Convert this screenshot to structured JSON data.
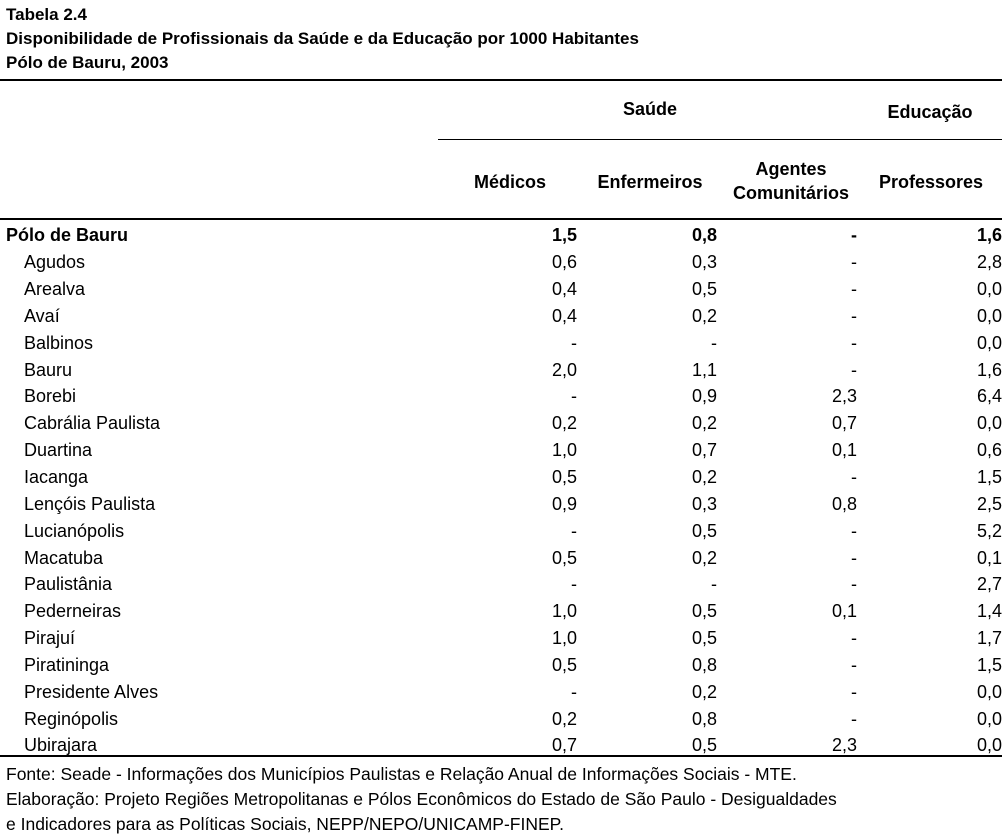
{
  "title": {
    "line1": "Tabela 2.4",
    "line2": "Disponibilidade de Profissionais da Saúde e da Educação por 1000 Habitantes",
    "line3": "Pólo de Bauru, 2003"
  },
  "headers": {
    "group_saude": "Saúde",
    "group_educacao": "Educação",
    "medicos": "Médicos",
    "enfermeiros": "Enfermeiros",
    "agentes_line1": "Agentes",
    "agentes_line2": "Comunitários",
    "professores": "Professores"
  },
  "rows": [
    {
      "name": "Pólo de Bauru",
      "medicos": "1,5",
      "enfermeiros": "0,8",
      "agentes": "-",
      "professores": "1,6",
      "total": true
    },
    {
      "name": "Agudos",
      "medicos": "0,6",
      "enfermeiros": "0,3",
      "agentes": "-",
      "professores": "2,8"
    },
    {
      "name": "Arealva",
      "medicos": "0,4",
      "enfermeiros": "0,5",
      "agentes": "-",
      "professores": "0,0"
    },
    {
      "name": "Avaí",
      "medicos": "0,4",
      "enfermeiros": "0,2",
      "agentes": "-",
      "professores": "0,0"
    },
    {
      "name": "Balbinos",
      "medicos": "-",
      "enfermeiros": "-",
      "agentes": "-",
      "professores": "0,0"
    },
    {
      "name": "Bauru",
      "medicos": "2,0",
      "enfermeiros": "1,1",
      "agentes": "-",
      "professores": "1,6"
    },
    {
      "name": "Borebi",
      "medicos": "-",
      "enfermeiros": "0,9",
      "agentes": "2,3",
      "professores": "6,4"
    },
    {
      "name": "Cabrália Paulista",
      "medicos": "0,2",
      "enfermeiros": "0,2",
      "agentes": "0,7",
      "professores": "0,0"
    },
    {
      "name": "Duartina",
      "medicos": "1,0",
      "enfermeiros": "0,7",
      "agentes": "0,1",
      "professores": "0,6"
    },
    {
      "name": "Iacanga",
      "medicos": "0,5",
      "enfermeiros": "0,2",
      "agentes": "-",
      "professores": "1,5"
    },
    {
      "name": "Lençóis Paulista",
      "medicos": "0,9",
      "enfermeiros": "0,3",
      "agentes": "0,8",
      "professores": "2,5"
    },
    {
      "name": "Lucianópolis",
      "medicos": "-",
      "enfermeiros": "0,5",
      "agentes": "-",
      "professores": "5,2"
    },
    {
      "name": "Macatuba",
      "medicos": "0,5",
      "enfermeiros": "0,2",
      "agentes": "-",
      "professores": "0,1"
    },
    {
      "name": "Paulistânia",
      "medicos": "-",
      "enfermeiros": "-",
      "agentes": "-",
      "professores": "2,7"
    },
    {
      "name": "Pederneiras",
      "medicos": "1,0",
      "enfermeiros": "0,5",
      "agentes": "0,1",
      "professores": "1,4"
    },
    {
      "name": "Pirajuí",
      "medicos": "1,0",
      "enfermeiros": "0,5",
      "agentes": "-",
      "professores": "1,7"
    },
    {
      "name": "Piratininga",
      "medicos": "0,5",
      "enfermeiros": "0,8",
      "agentes": "-",
      "professores": "1,5"
    },
    {
      "name": "Presidente Alves",
      "medicos": "-",
      "enfermeiros": "0,2",
      "agentes": "-",
      "professores": "0,0"
    },
    {
      "name": "Reginópolis",
      "medicos": "0,2",
      "enfermeiros": "0,8",
      "agentes": "-",
      "professores": "0,0"
    },
    {
      "name": "Ubirajara",
      "medicos": "0,7",
      "enfermeiros": "0,5",
      "agentes": "2,3",
      "professores": "0,0"
    }
  ],
  "footer": {
    "line1": "Fonte: Seade - Informações dos Municípios Paulistas e Relação Anual de Informações Sociais - MTE.",
    "line2": "Elaboração: Projeto Regiões Metropolitanas e Pólos Econômicos do Estado de São Paulo - Desigualdades",
    "line3": "e Indicadores para as Políticas Sociais, NEPP/NEPO/UNICAMP-FINEP."
  }
}
